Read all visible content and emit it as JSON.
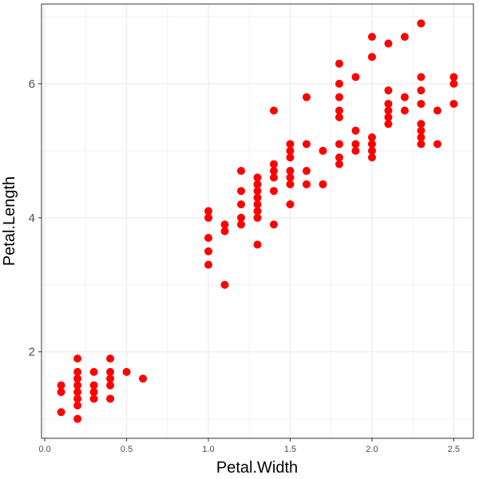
{
  "chart_data": {
    "type": "scatter",
    "title": "",
    "xlabel": "Petal.Width",
    "ylabel": "Petal.Length",
    "xlim": [
      -0.02,
      2.62
    ],
    "ylim": [
      0.71,
      7.19
    ],
    "x_ticks": [
      0.0,
      0.5,
      1.0,
      1.5,
      2.0,
      2.5
    ],
    "x_tick_labels": [
      "0.0",
      "0.5",
      "1.0",
      "1.5",
      "2.0",
      "2.5"
    ],
    "y_ticks": [
      2,
      4,
      6
    ],
    "y_tick_labels": [
      "2",
      "4",
      "6"
    ],
    "grid": true,
    "legend": "none",
    "point_color": "#ff0000",
    "points": [
      {
        "x": 0.1,
        "y": 1.1
      },
      {
        "x": 0.1,
        "y": 1.4
      },
      {
        "x": 0.1,
        "y": 1.5
      },
      {
        "x": 0.2,
        "y": 1.0
      },
      {
        "x": 0.2,
        "y": 1.2
      },
      {
        "x": 0.2,
        "y": 1.3
      },
      {
        "x": 0.2,
        "y": 1.4
      },
      {
        "x": 0.2,
        "y": 1.5
      },
      {
        "x": 0.2,
        "y": 1.6
      },
      {
        "x": 0.2,
        "y": 1.7
      },
      {
        "x": 0.2,
        "y": 1.9
      },
      {
        "x": 0.3,
        "y": 1.3
      },
      {
        "x": 0.3,
        "y": 1.4
      },
      {
        "x": 0.3,
        "y": 1.5
      },
      {
        "x": 0.3,
        "y": 1.7
      },
      {
        "x": 0.4,
        "y": 1.3
      },
      {
        "x": 0.4,
        "y": 1.5
      },
      {
        "x": 0.4,
        "y": 1.6
      },
      {
        "x": 0.4,
        "y": 1.7
      },
      {
        "x": 0.4,
        "y": 1.9
      },
      {
        "x": 0.5,
        "y": 1.7
      },
      {
        "x": 0.6,
        "y": 1.6
      },
      {
        "x": 1.0,
        "y": 3.3
      },
      {
        "x": 1.0,
        "y": 3.5
      },
      {
        "x": 1.0,
        "y": 3.7
      },
      {
        "x": 1.0,
        "y": 4.0
      },
      {
        "x": 1.0,
        "y": 4.1
      },
      {
        "x": 1.1,
        "y": 3.0
      },
      {
        "x": 1.1,
        "y": 3.8
      },
      {
        "x": 1.1,
        "y": 3.9
      },
      {
        "x": 1.2,
        "y": 3.9
      },
      {
        "x": 1.2,
        "y": 4.0
      },
      {
        "x": 1.2,
        "y": 4.2
      },
      {
        "x": 1.2,
        "y": 4.4
      },
      {
        "x": 1.2,
        "y": 4.7
      },
      {
        "x": 1.3,
        "y": 3.6
      },
      {
        "x": 1.3,
        "y": 4.0
      },
      {
        "x": 1.3,
        "y": 4.1
      },
      {
        "x": 1.3,
        "y": 4.2
      },
      {
        "x": 1.3,
        "y": 4.3
      },
      {
        "x": 1.3,
        "y": 4.4
      },
      {
        "x": 1.3,
        "y": 4.5
      },
      {
        "x": 1.3,
        "y": 4.6
      },
      {
        "x": 1.4,
        "y": 3.9
      },
      {
        "x": 1.4,
        "y": 4.4
      },
      {
        "x": 1.4,
        "y": 4.6
      },
      {
        "x": 1.4,
        "y": 4.7
      },
      {
        "x": 1.4,
        "y": 4.8
      },
      {
        "x": 1.4,
        "y": 5.6
      },
      {
        "x": 1.5,
        "y": 4.2
      },
      {
        "x": 1.5,
        "y": 4.5
      },
      {
        "x": 1.5,
        "y": 4.6
      },
      {
        "x": 1.5,
        "y": 4.7
      },
      {
        "x": 1.5,
        "y": 4.9
      },
      {
        "x": 1.5,
        "y": 5.0
      },
      {
        "x": 1.5,
        "y": 5.1
      },
      {
        "x": 1.6,
        "y": 4.5
      },
      {
        "x": 1.6,
        "y": 4.7
      },
      {
        "x": 1.6,
        "y": 5.1
      },
      {
        "x": 1.6,
        "y": 5.8
      },
      {
        "x": 1.7,
        "y": 4.5
      },
      {
        "x": 1.7,
        "y": 5.0
      },
      {
        "x": 1.8,
        "y": 4.8
      },
      {
        "x": 1.8,
        "y": 4.9
      },
      {
        "x": 1.8,
        "y": 5.1
      },
      {
        "x": 1.8,
        "y": 5.5
      },
      {
        "x": 1.8,
        "y": 5.6
      },
      {
        "x": 1.8,
        "y": 5.8
      },
      {
        "x": 1.8,
        "y": 6.0
      },
      {
        "x": 1.8,
        "y": 6.3
      },
      {
        "x": 1.9,
        "y": 5.0
      },
      {
        "x": 1.9,
        "y": 5.1
      },
      {
        "x": 1.9,
        "y": 5.3
      },
      {
        "x": 1.9,
        "y": 6.1
      },
      {
        "x": 2.0,
        "y": 4.9
      },
      {
        "x": 2.0,
        "y": 5.0
      },
      {
        "x": 2.0,
        "y": 5.1
      },
      {
        "x": 2.0,
        "y": 5.2
      },
      {
        "x": 2.0,
        "y": 6.4
      },
      {
        "x": 2.0,
        "y": 6.7
      },
      {
        "x": 2.1,
        "y": 5.4
      },
      {
        "x": 2.1,
        "y": 5.5
      },
      {
        "x": 2.1,
        "y": 5.6
      },
      {
        "x": 2.1,
        "y": 5.7
      },
      {
        "x": 2.1,
        "y": 5.9
      },
      {
        "x": 2.1,
        "y": 6.6
      },
      {
        "x": 2.2,
        "y": 5.6
      },
      {
        "x": 2.2,
        "y": 5.8
      },
      {
        "x": 2.2,
        "y": 6.7
      },
      {
        "x": 2.3,
        "y": 5.1
      },
      {
        "x": 2.3,
        "y": 5.2
      },
      {
        "x": 2.3,
        "y": 5.3
      },
      {
        "x": 2.3,
        "y": 5.4
      },
      {
        "x": 2.3,
        "y": 5.7
      },
      {
        "x": 2.3,
        "y": 5.9
      },
      {
        "x": 2.3,
        "y": 6.1
      },
      {
        "x": 2.3,
        "y": 6.9
      },
      {
        "x": 2.4,
        "y": 5.1
      },
      {
        "x": 2.4,
        "y": 5.6
      },
      {
        "x": 2.5,
        "y": 5.7
      },
      {
        "x": 2.5,
        "y": 6.0
      },
      {
        "x": 2.5,
        "y": 6.1
      }
    ]
  }
}
